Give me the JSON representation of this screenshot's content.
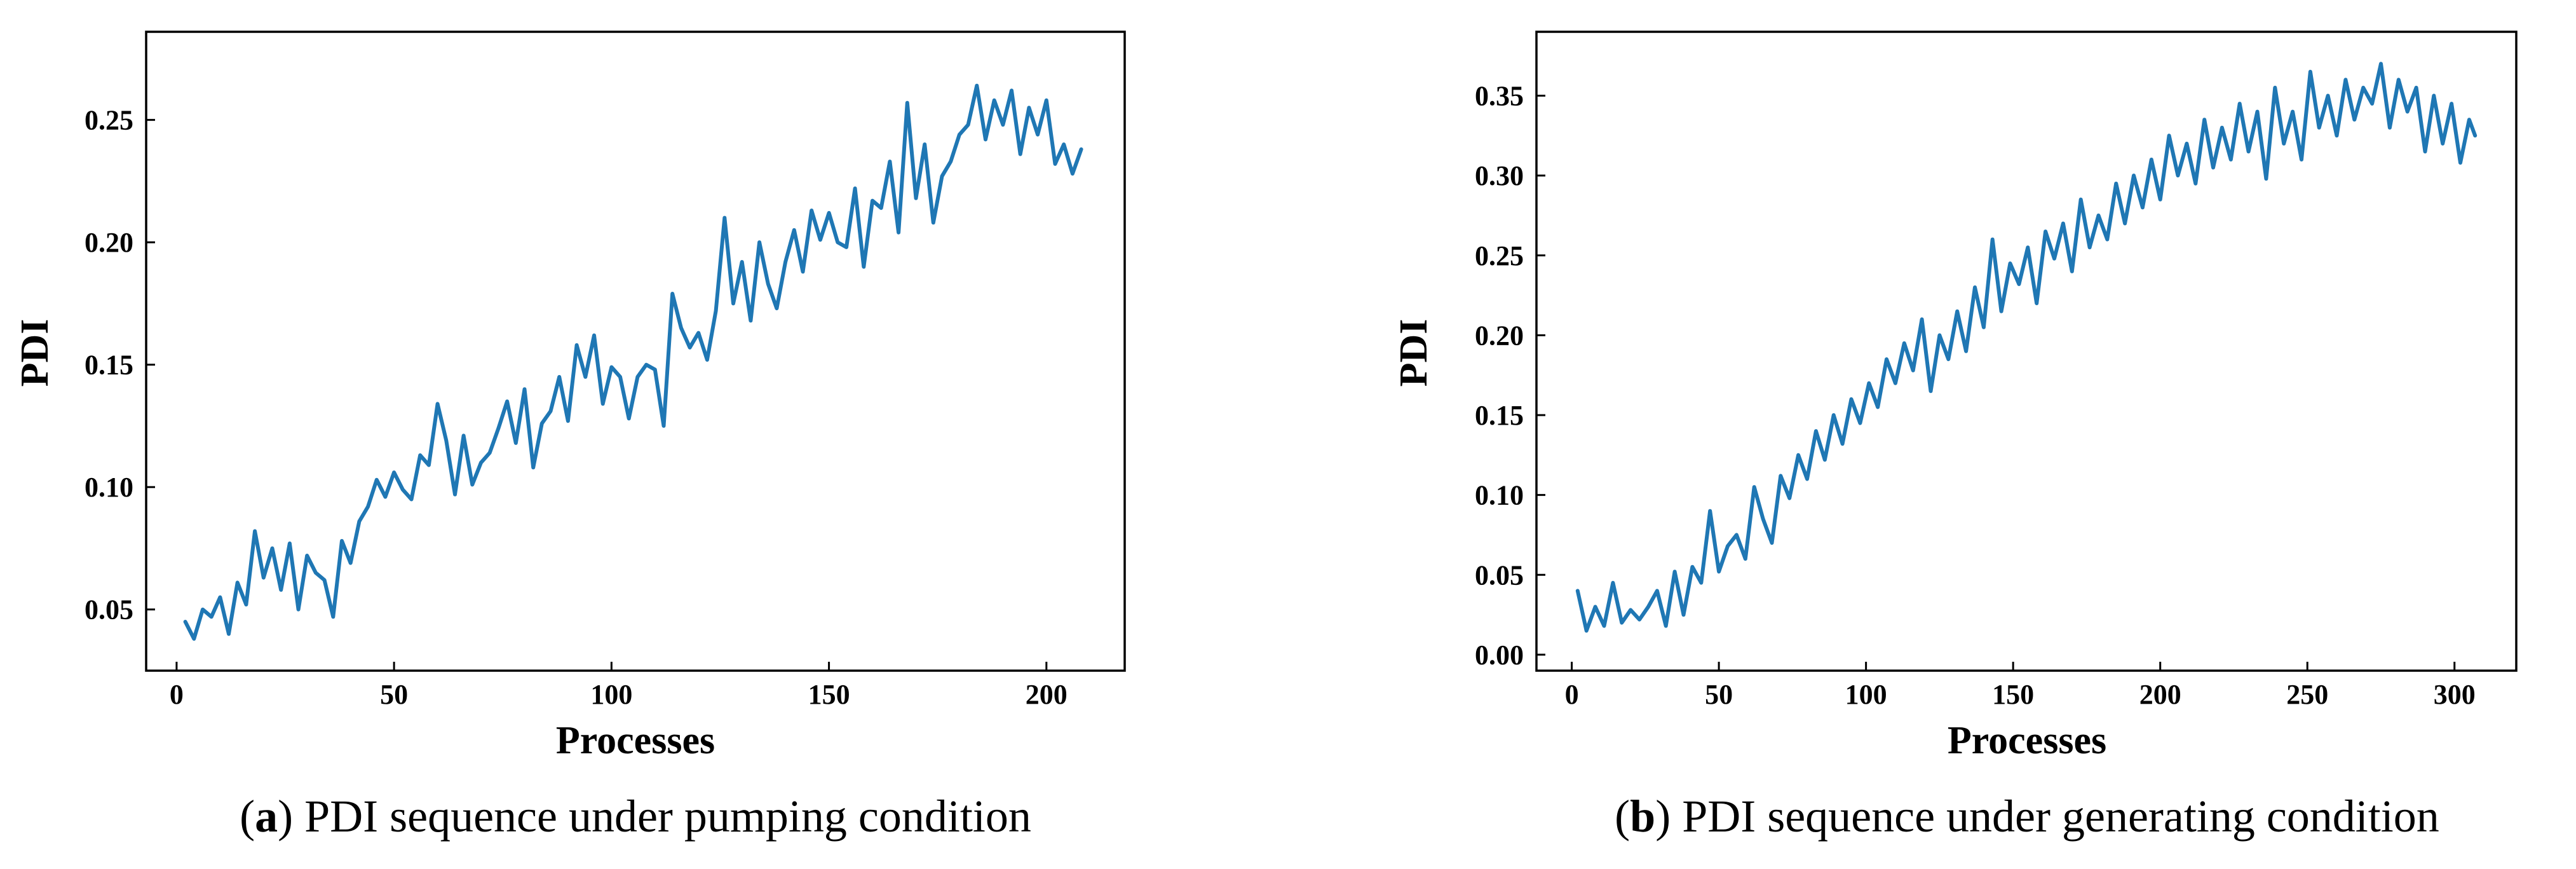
{
  "series_color": "#1f77b4",
  "chart_data": [
    {
      "type": "line",
      "title": "",
      "xlabel": "Processes",
      "ylabel": "PDI",
      "xlim": [
        -7,
        218
      ],
      "ylim": [
        0.025,
        0.286
      ],
      "xticks": [
        0,
        50,
        100,
        150,
        200
      ],
      "xtick_labels": [
        "0",
        "50",
        "100",
        "150",
        "200"
      ],
      "yticks": [
        0.05,
        0.1,
        0.15,
        0.2,
        0.25
      ],
      "ytick_labels": [
        "0.05",
        "0.10",
        "0.15",
        "0.20",
        "0.25"
      ],
      "caption_letter": "a",
      "caption_text": "PDI sequence under pumping condition",
      "series": [
        {
          "name": "PDI",
          "x": [
            2,
            4,
            6,
            8,
            10,
            12,
            14,
            16,
            18,
            20,
            22,
            24,
            26,
            28,
            30,
            32,
            34,
            36,
            38,
            40,
            42,
            44,
            46,
            48,
            50,
            52,
            54,
            56,
            58,
            60,
            62,
            64,
            66,
            68,
            70,
            72,
            74,
            76,
            78,
            80,
            82,
            84,
            86,
            88,
            90,
            92,
            94,
            96,
            98,
            100,
            102,
            104,
            106,
            108,
            110,
            112,
            114,
            116,
            118,
            120,
            122,
            124,
            126,
            128,
            130,
            132,
            134,
            136,
            138,
            140,
            142,
            144,
            146,
            148,
            150,
            152,
            154,
            156,
            158,
            160,
            162,
            164,
            166,
            168,
            170,
            172,
            174,
            176,
            178,
            180,
            182,
            184,
            186,
            188,
            190,
            192,
            194,
            196,
            198,
            200,
            202,
            204,
            206,
            208
          ],
          "y": [
            0.045,
            0.038,
            0.05,
            0.047,
            0.055,
            0.04,
            0.061,
            0.052,
            0.082,
            0.063,
            0.075,
            0.058,
            0.077,
            0.05,
            0.072,
            0.065,
            0.062,
            0.047,
            0.078,
            0.069,
            0.086,
            0.092,
            0.103,
            0.096,
            0.106,
            0.099,
            0.095,
            0.113,
            0.109,
            0.134,
            0.119,
            0.097,
            0.121,
            0.101,
            0.11,
            0.114,
            0.124,
            0.135,
            0.118,
            0.14,
            0.108,
            0.126,
            0.131,
            0.145,
            0.127,
            0.158,
            0.145,
            0.162,
            0.134,
            0.149,
            0.145,
            0.128,
            0.145,
            0.15,
            0.148,
            0.125,
            0.179,
            0.165,
            0.157,
            0.163,
            0.152,
            0.172,
            0.21,
            0.175,
            0.192,
            0.168,
            0.2,
            0.183,
            0.173,
            0.192,
            0.205,
            0.188,
            0.213,
            0.201,
            0.212,
            0.2,
            0.198,
            0.222,
            0.19,
            0.217,
            0.214,
            0.233,
            0.204,
            0.257,
            0.218,
            0.24,
            0.208,
            0.227,
            0.233,
            0.244,
            0.248,
            0.264,
            0.242,
            0.258,
            0.248,
            0.262,
            0.236,
            0.255,
            0.244,
            0.258,
            0.232,
            0.24,
            0.228,
            0.238
          ]
        }
      ]
    },
    {
      "type": "line",
      "title": "",
      "xlabel": "Processes",
      "ylabel": "PDI",
      "xlim": [
        -12,
        321
      ],
      "ylim": [
        -0.01,
        0.39
      ],
      "xticks": [
        0,
        50,
        100,
        150,
        200,
        250,
        300
      ],
      "xtick_labels": [
        "0",
        "50",
        "100",
        "150",
        "200",
        "250",
        "300"
      ],
      "yticks": [
        0.0,
        0.05,
        0.1,
        0.15,
        0.2,
        0.25,
        0.3,
        0.35
      ],
      "ytick_labels": [
        "0.00",
        "0.05",
        "0.10",
        "0.15",
        "0.20",
        "0.25",
        "0.30",
        "0.35"
      ],
      "caption_letter": "b",
      "caption_text": "PDI sequence under generating condition",
      "series": [
        {
          "name": "PDI",
          "x": [
            2,
            5,
            8,
            11,
            14,
            17,
            20,
            23,
            26,
            29,
            32,
            35,
            38,
            41,
            44,
            47,
            50,
            53,
            56,
            59,
            62,
            65,
            68,
            71,
            74,
            77,
            80,
            83,
            86,
            89,
            92,
            95,
            98,
            101,
            104,
            107,
            110,
            113,
            116,
            119,
            122,
            125,
            128,
            131,
            134,
            137,
            140,
            143,
            146,
            149,
            152,
            155,
            158,
            161,
            164,
            167,
            170,
            173,
            176,
            179,
            182,
            185,
            188,
            191,
            194,
            197,
            200,
            203,
            206,
            209,
            212,
            215,
            218,
            221,
            224,
            227,
            230,
            233,
            236,
            239,
            242,
            245,
            248,
            251,
            254,
            257,
            260,
            263,
            266,
            269,
            272,
            275,
            278,
            281,
            284,
            287,
            290,
            293,
            296,
            299,
            302,
            305,
            307
          ],
          "y": [
            0.04,
            0.015,
            0.03,
            0.018,
            0.045,
            0.02,
            0.028,
            0.022,
            0.03,
            0.04,
            0.018,
            0.052,
            0.025,
            0.055,
            0.045,
            0.09,
            0.052,
            0.068,
            0.075,
            0.06,
            0.105,
            0.085,
            0.07,
            0.112,
            0.098,
            0.125,
            0.11,
            0.14,
            0.122,
            0.15,
            0.132,
            0.16,
            0.145,
            0.17,
            0.155,
            0.185,
            0.17,
            0.195,
            0.178,
            0.21,
            0.165,
            0.2,
            0.185,
            0.215,
            0.19,
            0.23,
            0.205,
            0.26,
            0.215,
            0.245,
            0.232,
            0.255,
            0.22,
            0.265,
            0.248,
            0.27,
            0.24,
            0.285,
            0.255,
            0.275,
            0.26,
            0.295,
            0.27,
            0.3,
            0.28,
            0.31,
            0.285,
            0.325,
            0.3,
            0.32,
            0.295,
            0.335,
            0.305,
            0.33,
            0.31,
            0.345,
            0.315,
            0.34,
            0.298,
            0.355,
            0.32,
            0.34,
            0.31,
            0.365,
            0.33,
            0.35,
            0.325,
            0.36,
            0.335,
            0.355,
            0.345,
            0.37,
            0.33,
            0.36,
            0.34,
            0.355,
            0.315,
            0.35,
            0.32,
            0.345,
            0.308,
            0.335,
            0.325
          ]
        }
      ]
    }
  ]
}
